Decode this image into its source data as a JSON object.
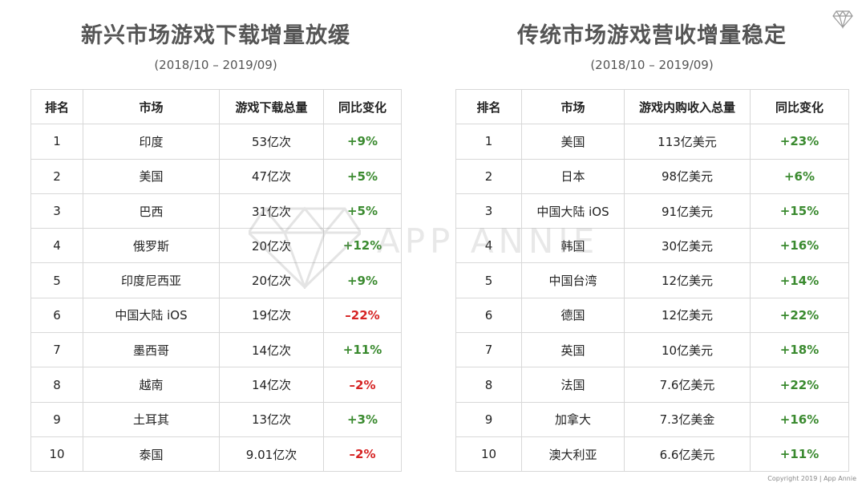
{
  "left": {
    "title": "新兴市场游戏下载增量放缓",
    "period": "(2018/10 – 2019/09)",
    "headers": [
      "排名",
      "市场",
      "游戏下载总量",
      "同比变化"
    ],
    "rows": [
      {
        "rank": "1",
        "market": "印度",
        "value": "53亿次",
        "change": "+9%",
        "dir": "pos"
      },
      {
        "rank": "2",
        "market": "美国",
        "value": "47亿次",
        "change": "+5%",
        "dir": "pos"
      },
      {
        "rank": "3",
        "market": "巴西",
        "value": "31亿次",
        "change": "+5%",
        "dir": "pos"
      },
      {
        "rank": "4",
        "market": "俄罗斯",
        "value": "20亿次",
        "change": "+12%",
        "dir": "pos"
      },
      {
        "rank": "5",
        "market": "印度尼西亚",
        "value": "20亿次",
        "change": "+9%",
        "dir": "pos"
      },
      {
        "rank": "6",
        "market": "中国大陆 iOS",
        "value": "19亿次",
        "change": "–22%",
        "dir": "neg"
      },
      {
        "rank": "7",
        "market": "墨西哥",
        "value": "14亿次",
        "change": "+11%",
        "dir": "pos"
      },
      {
        "rank": "8",
        "market": "越南",
        "value": "14亿次",
        "change": "–2%",
        "dir": "neg"
      },
      {
        "rank": "9",
        "market": "土耳其",
        "value": "13亿次",
        "change": "+3%",
        "dir": "pos"
      },
      {
        "rank": "10",
        "market": "泰国",
        "value": "9.01亿次",
        "change": "–2%",
        "dir": "neg"
      }
    ]
  },
  "right": {
    "title": "传统市场游戏营收增量稳定",
    "period": "(2018/10 – 2019/09)",
    "headers": [
      "排名",
      "市场",
      "游戏内购收入总量",
      "同比变化"
    ],
    "rows": [
      {
        "rank": "1",
        "market": "美国",
        "value": "113亿美元",
        "change": "+23%",
        "dir": "pos"
      },
      {
        "rank": "2",
        "market": "日本",
        "value": "98亿美元",
        "change": "+6%",
        "dir": "pos"
      },
      {
        "rank": "3",
        "market": "中国大陆 iOS",
        "value": "91亿美元",
        "change": "+15%",
        "dir": "pos"
      },
      {
        "rank": "4",
        "market": "韩国",
        "value": "30亿美元",
        "change": "+16%",
        "dir": "pos"
      },
      {
        "rank": "5",
        "market": "中国台湾",
        "value": "12亿美元",
        "change": "+14%",
        "dir": "pos"
      },
      {
        "rank": "6",
        "market": "德国",
        "value": "12亿美元",
        "change": "+22%",
        "dir": "pos"
      },
      {
        "rank": "7",
        "market": "英国",
        "value": "10亿美元",
        "change": "+18%",
        "dir": "pos"
      },
      {
        "rank": "8",
        "market": "法国",
        "value": "7.6亿美元",
        "change": "+22%",
        "dir": "pos"
      },
      {
        "rank": "9",
        "market": "加拿大",
        "value": "7.3亿美金",
        "change": "+16%",
        "dir": "pos"
      },
      {
        "rank": "10",
        "market": "澳大利亚",
        "value": "6.6亿美元",
        "change": "+11%",
        "dir": "pos"
      }
    ]
  },
  "watermark": {
    "text": "APP ANNIE",
    "icon": "diamond-logo-icon"
  },
  "footer": {
    "copyright": "Copyright 2019 | App Annie"
  },
  "colors": {
    "positive": "#3a8a2f",
    "negative": "#d62424"
  }
}
